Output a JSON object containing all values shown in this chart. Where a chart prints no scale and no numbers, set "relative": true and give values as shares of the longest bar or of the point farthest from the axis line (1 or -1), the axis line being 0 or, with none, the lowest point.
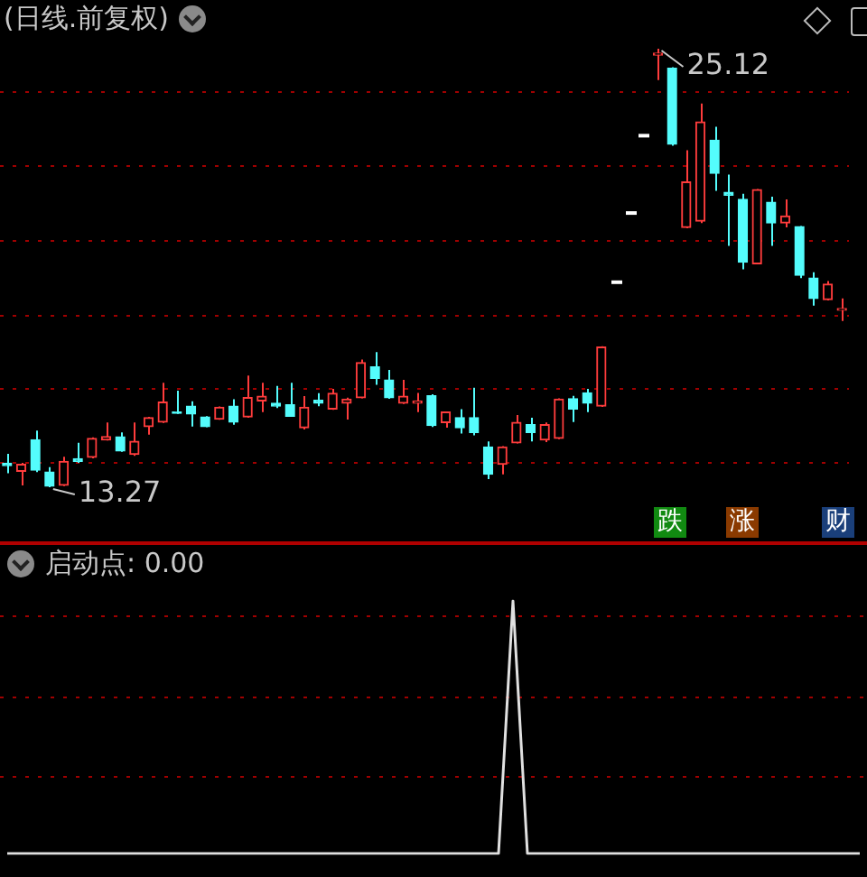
{
  "chart_data": [
    {
      "type": "candlestick",
      "title": "(日线.前复权)",
      "categories": [
        null,
        null,
        null,
        null,
        null,
        null,
        null,
        null,
        null,
        null,
        null,
        null,
        null,
        null,
        null,
        null,
        null,
        null,
        null,
        null,
        null,
        null,
        null,
        null,
        null,
        null,
        null,
        null,
        null,
        null,
        null,
        null,
        null,
        null,
        null,
        null,
        null,
        null,
        null,
        null,
        null,
        null,
        null,
        null,
        null,
        null,
        null,
        null,
        null,
        null,
        null,
        null,
        null,
        null,
        null,
        null,
        null,
        null,
        null,
        null
      ],
      "ohlc": [
        [
          13.92,
          14.17,
          13.65,
          13.85
        ],
        [
          13.7,
          13.93,
          13.32,
          13.89
        ],
        [
          14.55,
          14.8,
          13.68,
          13.73
        ],
        [
          13.68,
          13.81,
          13.27,
          13.3
        ],
        [
          13.32,
          14.09,
          13.3,
          13.97
        ],
        [
          14.04,
          14.47,
          13.93,
          13.97
        ],
        [
          14.08,
          14.62,
          14.05,
          14.59
        ],
        [
          14.55,
          15.02,
          14.53,
          14.64
        ],
        [
          14.63,
          14.75,
          14.23,
          14.25
        ],
        [
          14.16,
          15.02,
          14.12,
          14.51
        ],
        [
          14.91,
          15.17,
          14.69,
          15.15
        ],
        [
          15.03,
          16.09,
          15.01,
          15.57
        ],
        [
          15.3,
          15.88,
          15.25,
          15.27
        ],
        [
          15.46,
          15.59,
          14.91,
          15.25
        ],
        [
          15.17,
          15.19,
          14.89,
          14.91
        ],
        [
          15.11,
          15.45,
          15.09,
          15.43
        ],
        [
          15.46,
          15.65,
          14.96,
          15.03
        ],
        [
          15.17,
          16.29,
          15.15,
          15.69
        ],
        [
          15.6,
          16.09,
          15.3,
          15.73
        ],
        [
          15.54,
          16.01,
          15.41,
          15.46
        ],
        [
          15.5,
          16.09,
          15.17,
          15.19
        ],
        [
          14.88,
          15.73,
          14.83,
          15.43
        ],
        [
          15.62,
          15.81,
          15.46,
          15.54
        ],
        [
          15.38,
          15.93,
          15.36,
          15.81
        ],
        [
          15.54,
          15.69,
          15.1,
          15.65
        ],
        [
          15.69,
          16.72,
          15.67,
          16.64
        ],
        [
          16.52,
          16.92,
          16.04,
          16.21
        ],
        [
          16.17,
          16.44,
          15.66,
          15.69
        ],
        [
          15.54,
          16.17,
          15.52,
          15.73
        ],
        [
          15.54,
          15.82,
          15.3,
          15.6
        ],
        [
          15.74,
          15.78,
          14.9,
          14.94
        ],
        [
          15.02,
          15.32,
          14.88,
          15.3
        ],
        [
          15.15,
          15.38,
          14.72,
          14.88
        ],
        [
          15.15,
          15.96,
          14.67,
          14.75
        ],
        [
          14.36,
          14.51,
          13.49,
          13.62
        ],
        [
          13.89,
          14.38,
          13.62,
          14.36
        ],
        [
          14.47,
          15.22,
          14.45,
          15.02
        ],
        [
          14.96,
          15.15,
          14.51,
          14.75
        ],
        [
          14.55,
          15.02,
          14.49,
          14.96
        ],
        [
          14.59,
          15.67,
          14.57,
          15.65
        ],
        [
          15.66,
          15.74,
          15.03,
          15.38
        ],
        [
          15.82,
          15.93,
          15.3,
          15.54
        ],
        [
          15.46,
          17.08,
          15.44,
          17.06
        ],
        [
          18.81,
          18.81,
          18.81,
          18.81
        ],
        [
          20.68,
          20.68,
          20.68,
          20.68
        ],
        [
          22.77,
          22.77,
          22.77,
          22.77
        ],
        [
          24.95,
          25.12,
          24.27,
          25.0
        ],
        [
          24.59,
          24.62,
          22.5,
          22.54
        ],
        [
          20.29,
          22.38,
          20.27,
          21.52
        ],
        [
          20.46,
          23.64,
          20.41,
          23.14
        ],
        [
          22.65,
          23.01,
          21.28,
          21.75
        ],
        [
          21.24,
          21.72,
          19.79,
          21.16
        ],
        [
          21.05,
          21.2,
          19.16,
          19.35
        ],
        [
          19.31,
          21.33,
          19.29,
          21.31
        ],
        [
          20.97,
          21.12,
          19.79,
          20.41
        ],
        [
          20.41,
          21.05,
          20.29,
          20.6
        ],
        [
          20.31,
          20.33,
          18.92,
          19.0
        ],
        [
          18.92,
          19.08,
          18.18,
          18.37
        ],
        [
          18.34,
          18.84,
          18.32,
          18.76
        ],
        [
          18.05,
          18.37,
          17.76,
          18.1
        ]
      ],
      "colors": [
        "#54fcfc",
        "#ff3c3c",
        "#54fcfc",
        "#54fcfc",
        "#ff3c3c",
        "#54fcfc",
        "#ff3c3c",
        "#ff3c3c",
        "#54fcfc",
        "#ff3c3c",
        "#ff3c3c",
        "#ff3c3c",
        "#54fcfc",
        "#54fcfc",
        "#54fcfc",
        "#ff3c3c",
        "#54fcfc",
        "#ff3c3c",
        "#ff3c3c",
        "#54fcfc",
        "#54fcfc",
        "#ff3c3c",
        "#54fcfc",
        "#ff3c3c",
        "#ff3c3c",
        "#ff3c3c",
        "#54fcfc",
        "#54fcfc",
        "#ff3c3c",
        "#ff3c3c",
        "#54fcfc",
        "#ff3c3c",
        "#54fcfc",
        "#54fcfc",
        "#54fcfc",
        "#ff3c3c",
        "#ff3c3c",
        "#54fcfc",
        "#ff3c3c",
        "#ff3c3c",
        "#54fcfc",
        "#54fcfc",
        "#ff3c3c",
        "#ffffff",
        "#ffffff",
        "#ffffff",
        "#ff3c3c",
        "#54fcfc",
        "#ff3c3c",
        "#ff3c3c",
        "#54fcfc",
        "#54fcfc",
        "#54fcfc",
        "#ff3c3c",
        "#54fcfc",
        "#ff3c3c",
        "#54fcfc",
        "#54fcfc",
        "#ff3c3c",
        "#ff3c3c"
      ],
      "yticks": [
        {
          "value": 13.93,
          "label": null
        },
        {
          "value": 15.92,
          "label": null
        },
        {
          "value": 17.9,
          "label": null
        },
        {
          "value": 19.93,
          "label": null
        },
        {
          "value": 21.96,
          "label": null
        },
        {
          "value": 23.94,
          "label": null
        }
      ],
      "tick_labels": false,
      "grid": "y",
      "annotations": [
        "25.12",
        "13.27",
        "跌",
        "涨",
        "财"
      ]
    },
    {
      "type": "line",
      "title": "启动点: 0.00",
      "relative": true,
      "legend": false,
      "ref_lines": [
        {
          "axis": "y",
          "value": 0.31,
          "color": "#a00000",
          "line_style": "dotted"
        },
        {
          "axis": "y",
          "value": 0.62,
          "color": "#a00000",
          "line_style": "dotted"
        },
        {
          "axis": "y",
          "value": 0.94,
          "color": "#a00000",
          "line_style": "dotted"
        }
      ],
      "categories": [
        null,
        null,
        null,
        null,
        null,
        null,
        null,
        null,
        null,
        null,
        null,
        null,
        null,
        null,
        null,
        null,
        null,
        null,
        null,
        null,
        null,
        null,
        null,
        null,
        null,
        null,
        null,
        null,
        null,
        null,
        null,
        null,
        null,
        null,
        null,
        null,
        null,
        null,
        null,
        null,
        null,
        null,
        null,
        null,
        null,
        null,
        null,
        null,
        null,
        null,
        null,
        null,
        null,
        null,
        null,
        null,
        null,
        null,
        null,
        null
      ],
      "series": [
        {
          "color": "#e0e0e0",
          "values": [
            0,
            0,
            0,
            0,
            0,
            0,
            0,
            0,
            0,
            0,
            0,
            0,
            0,
            0,
            0,
            0,
            0,
            0,
            0,
            0,
            0,
            0,
            0,
            0,
            0,
            0,
            0,
            0,
            0,
            0,
            0,
            0,
            0,
            0,
            0,
            1,
            0,
            0,
            0,
            0,
            0,
            0,
            0,
            0,
            0,
            0,
            0,
            0,
            0,
            0,
            0,
            0,
            0,
            0,
            0,
            0,
            0,
            0,
            0,
            0
          ]
        }
      ]
    }
  ]
}
